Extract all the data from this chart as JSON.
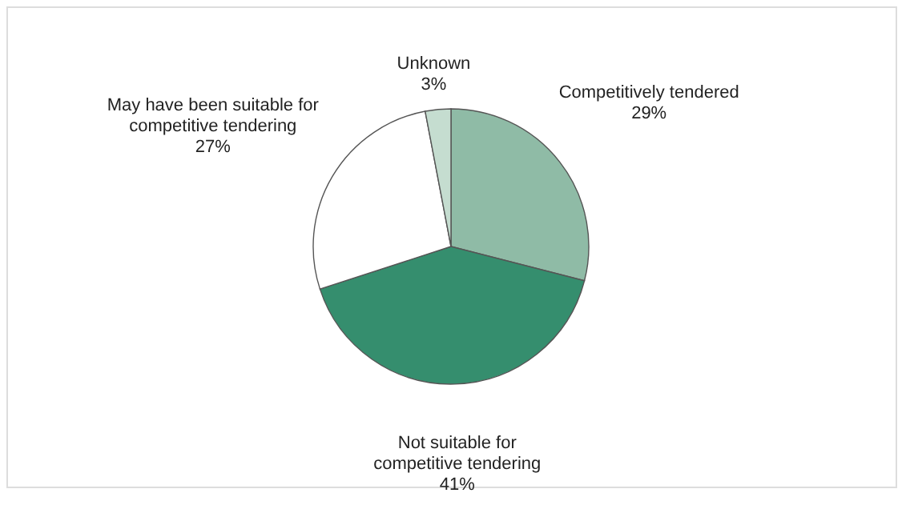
{
  "chart_data": {
    "type": "pie",
    "categories": [
      "Competitively tendered",
      "Not suitable for competitive tendering",
      "May have been suitable for competitive tendering",
      "Unknown"
    ],
    "values": [
      29,
      41,
      27,
      3
    ],
    "value_labels": [
      "29%",
      "41%",
      "27%",
      "3%"
    ],
    "colors": [
      "#8fbba6",
      "#358e6e",
      "#ffffff",
      "#c5ddd0"
    ],
    "legend": false
  }
}
